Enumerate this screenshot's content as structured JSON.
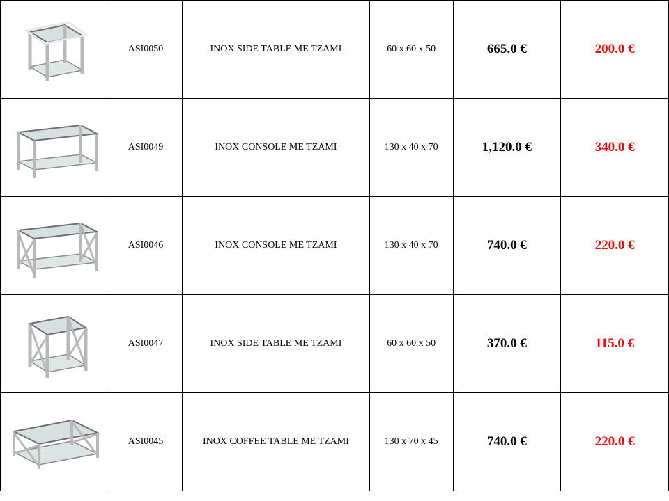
{
  "rows": [
    {
      "code": "ASI0050",
      "desc": "INOX SIDE TABLE ME TZAMI",
      "dims": "60 x 60 x 50",
      "price": "665.0 €",
      "sale": "200.0 €",
      "shape": "cube"
    },
    {
      "code": "ASI0049",
      "desc": "INOX CONSOLE ME TZAMI",
      "dims": "130 x 40 x 70",
      "price": "1,120.0 €",
      "sale": "340.0 €",
      "shape": "console"
    },
    {
      "code": "ASI0046",
      "desc": "INOX CONSOLE ME TZAMI",
      "dims": "130 x 40 x 70",
      "price": "740.0 €",
      "sale": "220.0 €",
      "shape": "console-x"
    },
    {
      "code": "ASI0047",
      "desc": "INOX SIDE TABLE ME TZAMI",
      "dims": "60 x 60 x 50",
      "price": "370.0 €",
      "sale": "115.0 €",
      "shape": "cube-x"
    },
    {
      "code": "ASI0045",
      "desc": "INOX COFFEE TABLE ME TZAMI",
      "dims": "130 x 70 x 45",
      "price": "740.0 €",
      "sale": "220.0 €",
      "shape": "coffee-x"
    }
  ],
  "style": {
    "frame_color": "#b8b8b8",
    "frame_light": "#e8e8e8",
    "frame_dark": "#6f6f6f",
    "glass_color": "#d6e0e0",
    "code_fontsize": 14,
    "price_fontsize": 19,
    "price_color": "#000000",
    "sale_color": "#ff0000"
  }
}
